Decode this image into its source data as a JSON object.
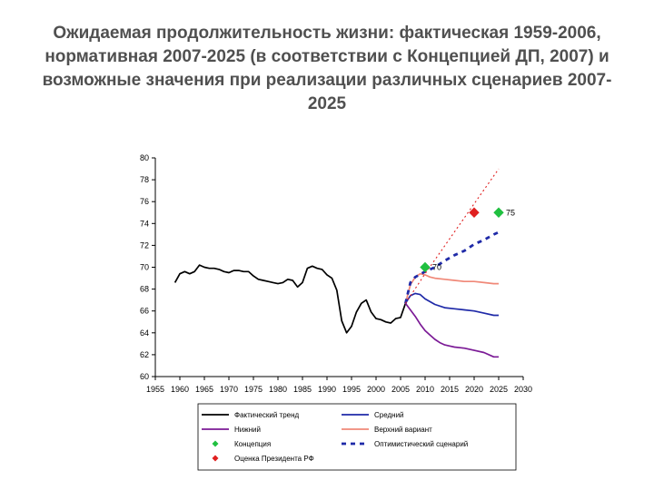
{
  "slide": {
    "title_lines": [
      "Ожидаемая продолжительность жизни: фактическая 1959-2006,",
      "нормативная 2007-2025 (в соответствии с Концепцией ДП, 2007) и",
      "возможные значения при реализации различных сценариев 2007-",
      "2025"
    ]
  },
  "chart_data": {
    "type": "line",
    "title": "",
    "xlabel": "",
    "ylabel": "",
    "xlim": [
      1955,
      2030
    ],
    "ylim": [
      60,
      80
    ],
    "x_ticks": [
      "1955",
      "1960",
      "1965",
      "1970",
      "1975",
      "1980",
      "1985",
      "1990",
      "1995",
      "2000",
      "2005",
      "2010",
      "2015",
      "2020",
      "2025",
      "2030"
    ],
    "y_ticks": [
      "60",
      "62",
      "64",
      "66",
      "68",
      "70",
      "72",
      "74",
      "76",
      "78",
      "80"
    ],
    "grid": false,
    "legend_position": "bottom",
    "series": [
      {
        "name": "Фактический тренд",
        "color": "#000000",
        "style": "solid",
        "points": [
          [
            1959,
            68.6
          ],
          [
            1960,
            69.4
          ],
          [
            1961,
            69.6
          ],
          [
            1962,
            69.4
          ],
          [
            1963,
            69.6
          ],
          [
            1964,
            70.2
          ],
          [
            1965,
            70.0
          ],
          [
            1966,
            69.9
          ],
          [
            1967,
            69.9
          ],
          [
            1968,
            69.8
          ],
          [
            1969,
            69.6
          ],
          [
            1970,
            69.5
          ],
          [
            1971,
            69.7
          ],
          [
            1972,
            69.7
          ],
          [
            1973,
            69.6
          ],
          [
            1974,
            69.6
          ],
          [
            1975,
            69.2
          ],
          [
            1976,
            68.9
          ],
          [
            1977,
            68.8
          ],
          [
            1978,
            68.7
          ],
          [
            1979,
            68.6
          ],
          [
            1980,
            68.5
          ],
          [
            1981,
            68.6
          ],
          [
            1982,
            68.9
          ],
          [
            1983,
            68.8
          ],
          [
            1984,
            68.2
          ],
          [
            1985,
            68.6
          ],
          [
            1986,
            69.9
          ],
          [
            1987,
            70.1
          ],
          [
            1988,
            69.9
          ],
          [
            1989,
            69.8
          ],
          [
            1990,
            69.3
          ],
          [
            1991,
            69.0
          ],
          [
            1992,
            67.9
          ],
          [
            1993,
            65.1
          ],
          [
            1994,
            64.0
          ],
          [
            1995,
            64.6
          ],
          [
            1996,
            65.9
          ],
          [
            1997,
            66.7
          ],
          [
            1998,
            67.0
          ],
          [
            1999,
            65.9
          ],
          [
            2000,
            65.3
          ],
          [
            2001,
            65.2
          ],
          [
            2002,
            65.0
          ],
          [
            2003,
            64.9
          ],
          [
            2004,
            65.3
          ],
          [
            2005,
            65.4
          ],
          [
            2006,
            66.7
          ]
        ]
      },
      {
        "name": "Средний",
        "color": "#1f2aa8",
        "style": "solid",
        "points": [
          [
            2006,
            66.7
          ],
          [
            2007,
            67.4
          ],
          [
            2008,
            67.6
          ],
          [
            2009,
            67.5
          ],
          [
            2010,
            67.1
          ],
          [
            2012,
            66.6
          ],
          [
            2014,
            66.3
          ],
          [
            2016,
            66.2
          ],
          [
            2018,
            66.1
          ],
          [
            2020,
            66.0
          ],
          [
            2022,
            65.8
          ],
          [
            2024,
            65.6
          ],
          [
            2025,
            65.6
          ]
        ]
      },
      {
        "name": "Нижний",
        "color": "#7b1a96",
        "style": "solid",
        "points": [
          [
            2006,
            66.7
          ],
          [
            2007,
            66.1
          ],
          [
            2008,
            65.5
          ],
          [
            2009,
            64.8
          ],
          [
            2010,
            64.2
          ],
          [
            2011,
            63.8
          ],
          [
            2012,
            63.4
          ],
          [
            2013,
            63.1
          ],
          [
            2014,
            62.9
          ],
          [
            2015,
            62.8
          ],
          [
            2016,
            62.7
          ],
          [
            2018,
            62.6
          ],
          [
            2020,
            62.4
          ],
          [
            2022,
            62.2
          ],
          [
            2024,
            61.8
          ],
          [
            2025,
            61.8
          ]
        ]
      },
      {
        "name": "Верхний вариант",
        "color": "#f08878",
        "style": "solid",
        "points": [
          [
            2006,
            66.7
          ],
          [
            2007,
            68.4
          ],
          [
            2008,
            69.1
          ],
          [
            2009,
            69.4
          ],
          [
            2010,
            69.3
          ],
          [
            2011,
            69.1
          ],
          [
            2012,
            69.0
          ],
          [
            2014,
            68.9
          ],
          [
            2016,
            68.8
          ],
          [
            2018,
            68.7
          ],
          [
            2020,
            68.7
          ],
          [
            2022,
            68.6
          ],
          [
            2024,
            68.5
          ],
          [
            2025,
            68.5
          ]
        ]
      },
      {
        "name": "Оптимистический сценарий",
        "color": "#1f2aa8",
        "style": "dashed",
        "points": [
          [
            2006,
            66.7
          ],
          [
            2007,
            68.6
          ],
          [
            2008,
            69.1
          ],
          [
            2010,
            69.6
          ],
          [
            2012,
            70.0
          ],
          [
            2014,
            70.6
          ],
          [
            2016,
            71.1
          ],
          [
            2018,
            71.5
          ],
          [
            2020,
            72.1
          ],
          [
            2022,
            72.5
          ],
          [
            2024,
            73.0
          ],
          [
            2025,
            73.2
          ]
        ]
      },
      {
        "name": "Оценка Президента РФ",
        "color": "#e02020",
        "style": "dotted",
        "points": [
          [
            2006,
            66.7
          ],
          [
            2010,
            69.4
          ],
          [
            2015,
            72.6
          ],
          [
            2020,
            75.8
          ],
          [
            2025,
            79.0
          ]
        ]
      }
    ],
    "markers": [
      {
        "name": "Концепция",
        "color": "#20c040",
        "shape": "diamond",
        "points": [
          [
            2010,
            70.0
          ],
          [
            2025,
            75.0
          ]
        ],
        "labels": [
          "70",
          "75"
        ]
      },
      {
        "name": "Оценка Президента РФ",
        "color": "#e02020",
        "shape": "diamond",
        "points": [
          [
            2020,
            75.0
          ]
        ],
        "labels": [
          ""
        ]
      }
    ],
    "legend": [
      {
        "label": "Фактический тренд",
        "kind": "line",
        "color": "#000000",
        "style": "solid"
      },
      {
        "label": "Средний",
        "kind": "line",
        "color": "#1f2aa8",
        "style": "solid"
      },
      {
        "label": "Нижний",
        "kind": "line",
        "color": "#7b1a96",
        "style": "solid"
      },
      {
        "label": "Верхний вариант",
        "kind": "line",
        "color": "#f08878",
        "style": "solid"
      },
      {
        "label": "Концепция",
        "kind": "marker",
        "color": "#20c040",
        "style": ""
      },
      {
        "label": "Оптимистический сценарий",
        "kind": "line",
        "color": "#1f2aa8",
        "style": "dashed"
      },
      {
        "label": "Оценка Президента РФ",
        "kind": "marker",
        "color": "#e02020",
        "style": ""
      }
    ]
  }
}
